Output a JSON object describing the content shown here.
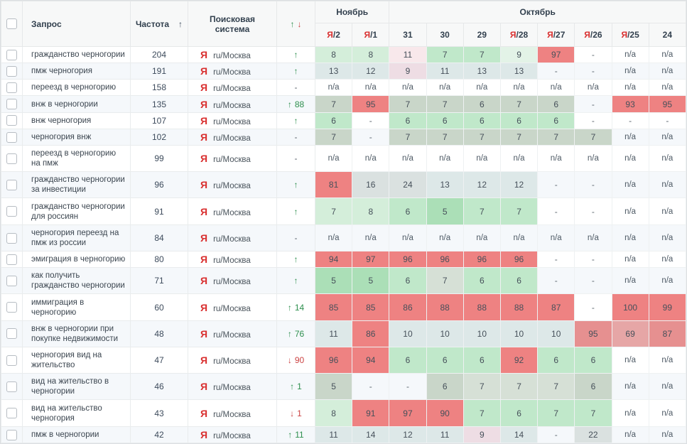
{
  "colors": {
    "r1": "#ee8282",
    "r2": "#e69090",
    "r3": "#e6a6a6",
    "p1": "#eedde4",
    "p2": "#f8e8eb",
    "g1": "#abdfb7",
    "g2": "#c0e8ca",
    "g3": "#d4eeda",
    "g4": "#e3f3e7",
    "gg1": "#c9d6c9",
    "gg2": "#d6e0d6",
    "bg1": "#dde8e8",
    "gy1": "#dae1e0",
    "accent_up_green": "#2e8f4e",
    "accent_down_red": "#cc4444",
    "yandex_red": "#d92f2f",
    "header_text": "#32404e"
  },
  "icons": {
    "up": "↑",
    "down": "↓",
    "dash": "-"
  },
  "table": {
    "columns": {
      "query": "Запрос",
      "frequency": "Частота",
      "frequency_sort": "↑",
      "search_engine": "Поисковая система",
      "dynamics_up": "↑",
      "dynamics_down": "↓"
    },
    "months": [
      {
        "label": "Ноябрь",
        "colspan": 2
      },
      {
        "label": "Октябрь",
        "colspan": 8
      }
    ],
    "dates": [
      {
        "engine": "Я",
        "day": "2"
      },
      {
        "engine": "Я",
        "day": "1"
      },
      {
        "engine": "",
        "day": "31"
      },
      {
        "engine": "",
        "day": "30"
      },
      {
        "engine": "",
        "day": "29"
      },
      {
        "engine": "Я",
        "day": "28"
      },
      {
        "engine": "Я",
        "day": "27"
      },
      {
        "engine": "Я",
        "day": "26"
      },
      {
        "engine": "Я",
        "day": "25"
      },
      {
        "engine": "",
        "day": "24"
      }
    ],
    "rows": [
      {
        "query": "гражданство черногории",
        "frequency": "204",
        "engine": "Я",
        "region": "ru/Москва",
        "change": {
          "dir": "up",
          "value": ""
        },
        "cells": [
          {
            "v": "8",
            "k": "g3"
          },
          {
            "v": "8",
            "k": "g3"
          },
          {
            "v": "11",
            "k": "p2"
          },
          {
            "v": "7",
            "k": "g2"
          },
          {
            "v": "7",
            "k": "g2"
          },
          {
            "v": "9",
            "k": "g4"
          },
          {
            "v": "97",
            "k": "r1"
          },
          {
            "v": "-"
          },
          {
            "v": "n/a"
          },
          {
            "v": "n/a"
          }
        ]
      },
      {
        "query": "пмж черногория",
        "frequency": "191",
        "engine": "Я",
        "region": "ru/Москва",
        "change": {
          "dir": "up",
          "value": ""
        },
        "cells": [
          {
            "v": "13",
            "k": "bg1"
          },
          {
            "v": "12",
            "k": "bg1"
          },
          {
            "v": "9",
            "k": "p1"
          },
          {
            "v": "11",
            "k": "bg1"
          },
          {
            "v": "13",
            "k": "bg1"
          },
          {
            "v": "13",
            "k": "bg1"
          },
          {
            "v": "-"
          },
          {
            "v": "-"
          },
          {
            "v": "n/a"
          },
          {
            "v": "n/a"
          }
        ]
      },
      {
        "query": "переезд в черногорию",
        "frequency": "158",
        "engine": "Я",
        "region": "ru/Москва",
        "change": {
          "dir": "none",
          "value": ""
        },
        "cells": [
          {
            "v": "n/a"
          },
          {
            "v": "n/a"
          },
          {
            "v": "n/a"
          },
          {
            "v": "n/a"
          },
          {
            "v": "n/a"
          },
          {
            "v": "n/a"
          },
          {
            "v": "n/a"
          },
          {
            "v": "n/a"
          },
          {
            "v": "n/a"
          },
          {
            "v": "n/a"
          }
        ]
      },
      {
        "query": "внж в черногории",
        "frequency": "135",
        "engine": "Я",
        "region": "ru/Москва",
        "change": {
          "dir": "up",
          "value": "88"
        },
        "cells": [
          {
            "v": "7",
            "k": "gg1"
          },
          {
            "v": "95",
            "k": "r1"
          },
          {
            "v": "7",
            "k": "gg1"
          },
          {
            "v": "7",
            "k": "gg1"
          },
          {
            "v": "6",
            "k": "gg1"
          },
          {
            "v": "7",
            "k": "gg1"
          },
          {
            "v": "6",
            "k": "gg1"
          },
          {
            "v": "-"
          },
          {
            "v": "93",
            "k": "r1"
          },
          {
            "v": "95",
            "k": "r1"
          }
        ]
      },
      {
        "query": "внж черногория",
        "frequency": "107",
        "engine": "Я",
        "region": "ru/Москва",
        "change": {
          "dir": "up",
          "value": ""
        },
        "cells": [
          {
            "v": "6",
            "k": "g2"
          },
          {
            "v": "-"
          },
          {
            "v": "6",
            "k": "g2"
          },
          {
            "v": "6",
            "k": "g2"
          },
          {
            "v": "6",
            "k": "g2"
          },
          {
            "v": "6",
            "k": "g2"
          },
          {
            "v": "6",
            "k": "g2"
          },
          {
            "v": "-"
          },
          {
            "v": "-"
          },
          {
            "v": "-"
          }
        ]
      },
      {
        "query": "черногория внж",
        "frequency": "102",
        "engine": "Я",
        "region": "ru/Москва",
        "change": {
          "dir": "none",
          "value": ""
        },
        "cells": [
          {
            "v": "7",
            "k": "gg1"
          },
          {
            "v": "-"
          },
          {
            "v": "7",
            "k": "gg1"
          },
          {
            "v": "7",
            "k": "gg1"
          },
          {
            "v": "7",
            "k": "gg1"
          },
          {
            "v": "7",
            "k": "gg1"
          },
          {
            "v": "7",
            "k": "gg1"
          },
          {
            "v": "7",
            "k": "gg1"
          },
          {
            "v": "n/a"
          },
          {
            "v": "n/a"
          }
        ]
      },
      {
        "query": "переезд в черногорию на пмж",
        "frequency": "99",
        "engine": "Я",
        "region": "ru/Москва",
        "change": {
          "dir": "none",
          "value": ""
        },
        "cells": [
          {
            "v": "n/a"
          },
          {
            "v": "n/a"
          },
          {
            "v": "n/a"
          },
          {
            "v": "n/a"
          },
          {
            "v": "n/a"
          },
          {
            "v": "n/a"
          },
          {
            "v": "n/a"
          },
          {
            "v": "n/a"
          },
          {
            "v": "n/a"
          },
          {
            "v": "n/a"
          }
        ]
      },
      {
        "query": "гражданство черногории за инвестиции",
        "frequency": "96",
        "engine": "Я",
        "region": "ru/Москва",
        "change": {
          "dir": "up",
          "value": ""
        },
        "cells": [
          {
            "v": "81",
            "k": "r1"
          },
          {
            "v": "16",
            "k": "gy1"
          },
          {
            "v": "24",
            "k": "gy1"
          },
          {
            "v": "13",
            "k": "bg1"
          },
          {
            "v": "12",
            "k": "bg1"
          },
          {
            "v": "12",
            "k": "bg1"
          },
          {
            "v": "-"
          },
          {
            "v": "-"
          },
          {
            "v": "n/a"
          },
          {
            "v": "n/a"
          }
        ]
      },
      {
        "query": "гражданство черногории для россиян",
        "frequency": "91",
        "engine": "Я",
        "region": "ru/Москва",
        "change": {
          "dir": "up",
          "value": ""
        },
        "cells": [
          {
            "v": "7",
            "k": "g3"
          },
          {
            "v": "8",
            "k": "g3"
          },
          {
            "v": "6",
            "k": "g2"
          },
          {
            "v": "5",
            "k": "g1"
          },
          {
            "v": "7",
            "k": "g2"
          },
          {
            "v": "7",
            "k": "g2"
          },
          {
            "v": "-"
          },
          {
            "v": "-"
          },
          {
            "v": "n/a"
          },
          {
            "v": "n/a"
          }
        ]
      },
      {
        "query": "черногория переезд на пмж из россии",
        "frequency": "84",
        "engine": "Я",
        "region": "ru/Москва",
        "change": {
          "dir": "none",
          "value": ""
        },
        "cells": [
          {
            "v": "n/a"
          },
          {
            "v": "n/a"
          },
          {
            "v": "n/a"
          },
          {
            "v": "n/a"
          },
          {
            "v": "n/a"
          },
          {
            "v": "n/a"
          },
          {
            "v": "n/a"
          },
          {
            "v": "n/a"
          },
          {
            "v": "n/a"
          },
          {
            "v": "n/a"
          }
        ]
      },
      {
        "query": "эмиграция в черногорию",
        "frequency": "80",
        "engine": "Я",
        "region": "ru/Москва",
        "change": {
          "dir": "up",
          "value": ""
        },
        "cells": [
          {
            "v": "94",
            "k": "r1"
          },
          {
            "v": "97",
            "k": "r1"
          },
          {
            "v": "96",
            "k": "r1"
          },
          {
            "v": "96",
            "k": "r1"
          },
          {
            "v": "96",
            "k": "r1"
          },
          {
            "v": "96",
            "k": "r1"
          },
          {
            "v": "-"
          },
          {
            "v": "-"
          },
          {
            "v": "n/a"
          },
          {
            "v": "n/a"
          }
        ]
      },
      {
        "query": "как получить гражданство черногории",
        "frequency": "71",
        "engine": "Я",
        "region": "ru/Москва",
        "change": {
          "dir": "up",
          "value": ""
        },
        "cells": [
          {
            "v": "5",
            "k": "g1"
          },
          {
            "v": "5",
            "k": "g1"
          },
          {
            "v": "6",
            "k": "g2"
          },
          {
            "v": "7",
            "k": "gg2"
          },
          {
            "v": "6",
            "k": "g2"
          },
          {
            "v": "6",
            "k": "g2"
          },
          {
            "v": "-"
          },
          {
            "v": "-"
          },
          {
            "v": "n/a"
          },
          {
            "v": "n/a"
          }
        ]
      },
      {
        "query": "иммиграция в черногорию",
        "frequency": "60",
        "engine": "Я",
        "region": "ru/Москва",
        "change": {
          "dir": "up",
          "value": "14"
        },
        "cells": [
          {
            "v": "85",
            "k": "r1"
          },
          {
            "v": "85",
            "k": "r1"
          },
          {
            "v": "86",
            "k": "r1"
          },
          {
            "v": "88",
            "k": "r1"
          },
          {
            "v": "88",
            "k": "r1"
          },
          {
            "v": "88",
            "k": "r1"
          },
          {
            "v": "87",
            "k": "r1"
          },
          {
            "v": "-"
          },
          {
            "v": "100",
            "k": "r1"
          },
          {
            "v": "99",
            "k": "r1"
          }
        ]
      },
      {
        "query": "внж в черногории при покупке недвижимости",
        "frequency": "48",
        "engine": "Я",
        "region": "ru/Москва",
        "change": {
          "dir": "up",
          "value": "76"
        },
        "cells": [
          {
            "v": "11",
            "k": "bg1"
          },
          {
            "v": "86",
            "k": "r1"
          },
          {
            "v": "10",
            "k": "bg1"
          },
          {
            "v": "10",
            "k": "bg1"
          },
          {
            "v": "10",
            "k": "bg1"
          },
          {
            "v": "10",
            "k": "bg1"
          },
          {
            "v": "10",
            "k": "bg1"
          },
          {
            "v": "95",
            "k": "r2"
          },
          {
            "v": "69",
            "k": "r3"
          },
          {
            "v": "87",
            "k": "r2"
          }
        ]
      },
      {
        "query": "черногория вид на жительство",
        "frequency": "47",
        "engine": "Я",
        "region": "ru/Москва",
        "change": {
          "dir": "down",
          "value": "90"
        },
        "cells": [
          {
            "v": "96",
            "k": "r1"
          },
          {
            "v": "94",
            "k": "r1"
          },
          {
            "v": "6",
            "k": "g2"
          },
          {
            "v": "6",
            "k": "g2"
          },
          {
            "v": "6",
            "k": "g2"
          },
          {
            "v": "92",
            "k": "r1"
          },
          {
            "v": "6",
            "k": "g2"
          },
          {
            "v": "6",
            "k": "g2"
          },
          {
            "v": "n/a"
          },
          {
            "v": "n/a"
          }
        ]
      },
      {
        "query": "вид на жительство в черногории",
        "frequency": "46",
        "engine": "Я",
        "region": "ru/Москва",
        "change": {
          "dir": "up",
          "value": "1"
        },
        "cells": [
          {
            "v": "5",
            "k": "gg1"
          },
          {
            "v": "-"
          },
          {
            "v": "-"
          },
          {
            "v": "6",
            "k": "gg1"
          },
          {
            "v": "7",
            "k": "gg2"
          },
          {
            "v": "7",
            "k": "gg2"
          },
          {
            "v": "7",
            "k": "gg2"
          },
          {
            "v": "6",
            "k": "gg1"
          },
          {
            "v": "n/a"
          },
          {
            "v": "n/a"
          }
        ]
      },
      {
        "query": "вид на жительство черногория",
        "frequency": "43",
        "engine": "Я",
        "region": "ru/Москва",
        "change": {
          "dir": "down",
          "value": "1"
        },
        "cells": [
          {
            "v": "8",
            "k": "g3"
          },
          {
            "v": "91",
            "k": "r1"
          },
          {
            "v": "97",
            "k": "r1"
          },
          {
            "v": "90",
            "k": "r1"
          },
          {
            "v": "7",
            "k": "g2"
          },
          {
            "v": "6",
            "k": "g2"
          },
          {
            "v": "7",
            "k": "g2"
          },
          {
            "v": "7",
            "k": "g2"
          },
          {
            "v": "n/a"
          },
          {
            "v": "n/a"
          }
        ]
      },
      {
        "query": "пмж в черногории",
        "frequency": "42",
        "engine": "Я",
        "region": "ru/Москва",
        "change": {
          "dir": "up",
          "value": "11"
        },
        "cells": [
          {
            "v": "11",
            "k": "bg1"
          },
          {
            "v": "14",
            "k": "bg1"
          },
          {
            "v": "12",
            "k": "bg1"
          },
          {
            "v": "11",
            "k": "bg1"
          },
          {
            "v": "9",
            "k": "p1"
          },
          {
            "v": "14",
            "k": "bg1"
          },
          {
            "v": "-"
          },
          {
            "v": "22",
            "k": "gy1"
          },
          {
            "v": "n/a"
          },
          {
            "v": "n/a"
          }
        ]
      }
    ]
  }
}
